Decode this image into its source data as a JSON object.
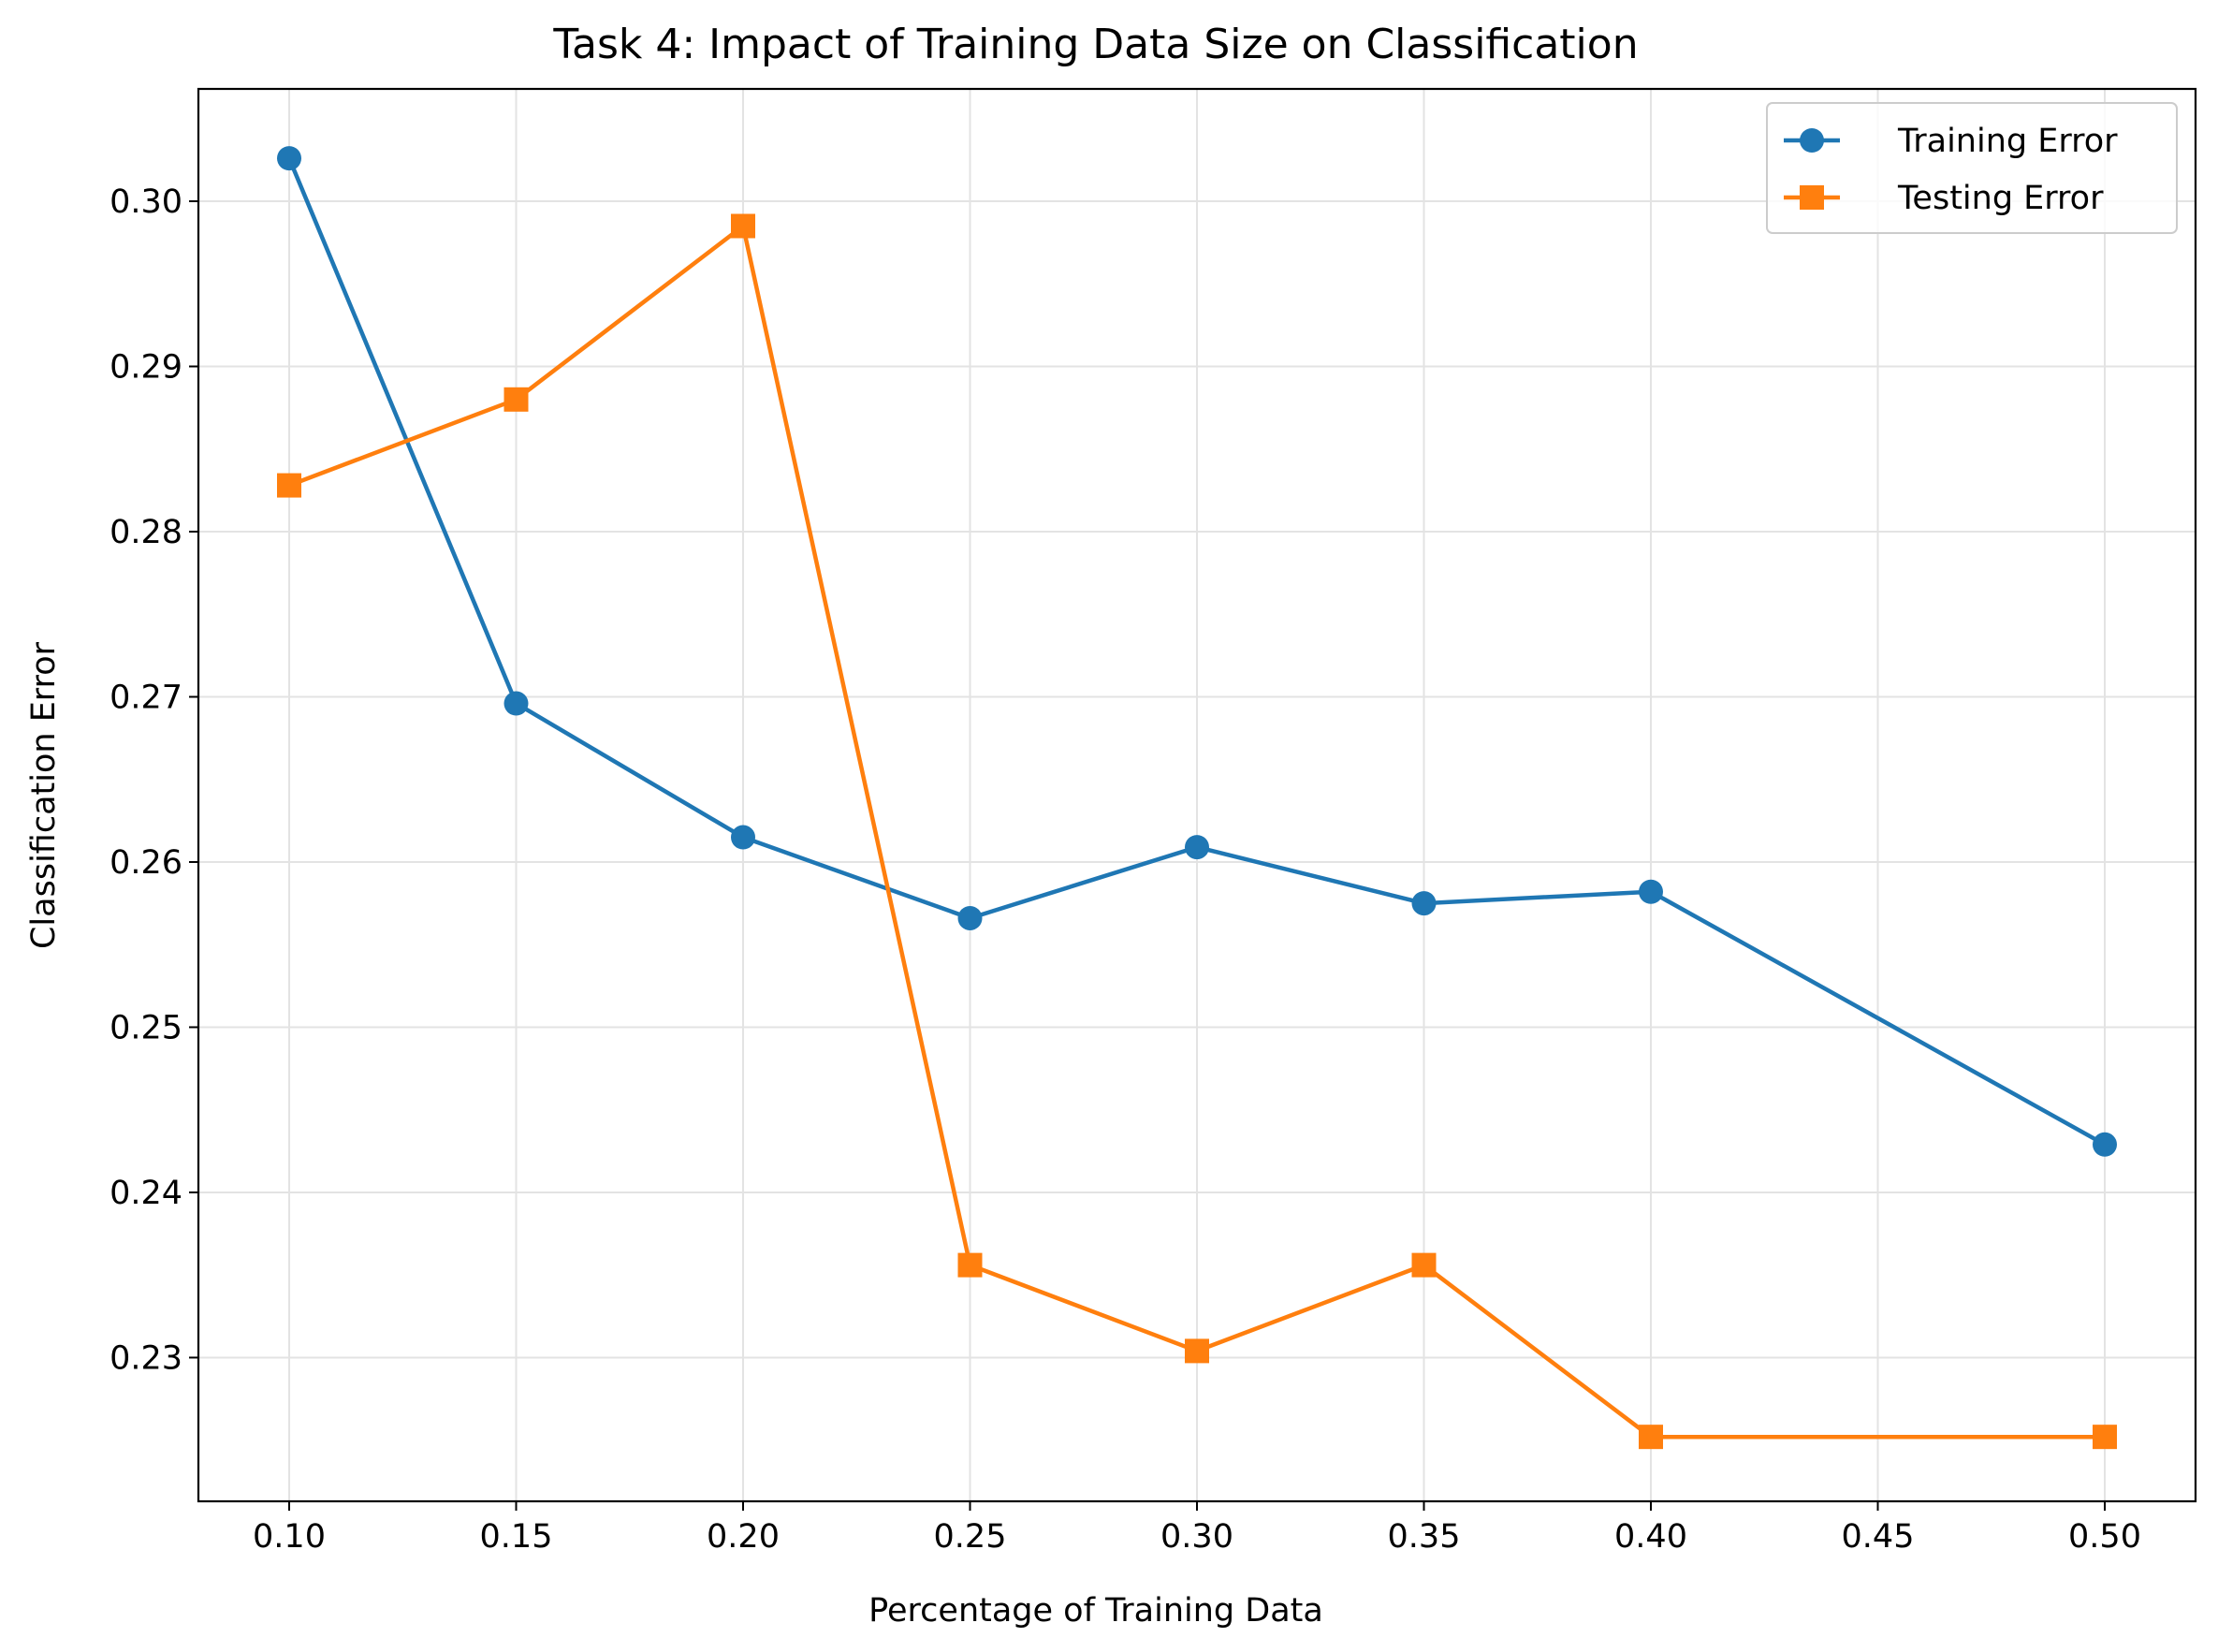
{
  "chart_data": {
    "type": "line",
    "title": "Task 4: Impact of Training Data Size on Classification",
    "xlabel": "Percentage of Training Data",
    "ylabel": "Classification Error",
    "xlim": [
      0.08,
      0.52
    ],
    "ylim": [
      0.2213,
      0.3068
    ],
    "xticks": [
      0.1,
      0.15,
      0.2,
      0.25,
      0.3,
      0.35,
      0.4,
      0.45,
      0.5
    ],
    "xtick_labels": [
      "0.10",
      "0.15",
      "0.20",
      "0.25",
      "0.30",
      "0.35",
      "0.40",
      "0.45",
      "0.50"
    ],
    "yticks": [
      0.23,
      0.24,
      0.25,
      0.26,
      0.27,
      0.28,
      0.29,
      0.3
    ],
    "ytick_labels": [
      "0.23",
      "0.24",
      "0.25",
      "0.26",
      "0.27",
      "0.28",
      "0.29",
      "0.30"
    ],
    "grid": true,
    "legend_position": "top-right",
    "x": [
      0.1,
      0.15,
      0.2,
      0.25,
      0.3,
      0.35,
      0.4,
      0.5
    ],
    "series": [
      {
        "name": "Training Error",
        "color": "#1f77b4",
        "marker": "circle",
        "values": [
          0.3026,
          0.2696,
          0.2615,
          0.2566,
          0.2609,
          0.2575,
          0.2582,
          0.2429
        ]
      },
      {
        "name": "Testing Error",
        "color": "#ff7f0e",
        "marker": "square",
        "values": [
          0.2828,
          0.288,
          0.2985,
          0.2356,
          0.2304,
          0.2356,
          0.2252,
          0.2252
        ]
      }
    ]
  }
}
